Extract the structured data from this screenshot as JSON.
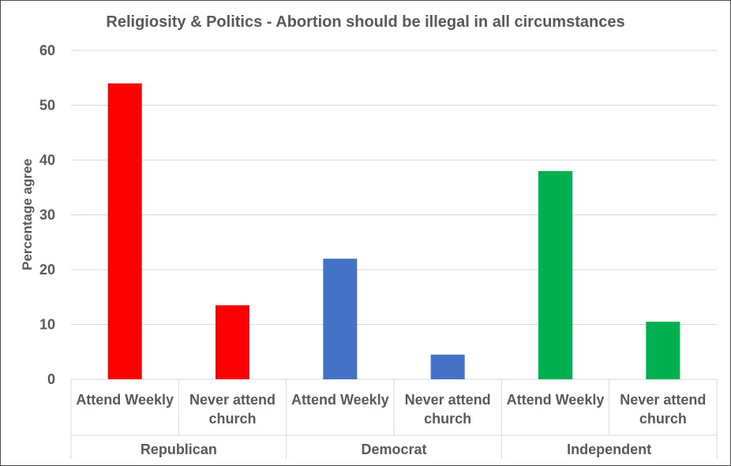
{
  "chart_data": {
    "type": "bar",
    "title": "Religiosity & Politics - Abortion should be illegal in all circumstances",
    "ylabel": "Percentage agree",
    "xlabel": "",
    "ylim": [
      0,
      60
    ],
    "yticks": [
      0,
      10,
      20,
      30,
      40,
      50,
      60
    ],
    "grid": true,
    "groups": [
      {
        "name": "Republican",
        "color": "#ff0000",
        "bars": [
          {
            "label": [
              "Attend Weekly"
            ],
            "value": 54
          },
          {
            "label": [
              "Never attend",
              "church"
            ],
            "value": 13.5
          }
        ]
      },
      {
        "name": "Democrat",
        "color": "#4472c4",
        "bars": [
          {
            "label": [
              "Attend Weekly"
            ],
            "value": 22
          },
          {
            "label": [
              "Never attend",
              "church"
            ],
            "value": 4.5
          }
        ]
      },
      {
        "name": "Independent",
        "color": "#00b050",
        "bars": [
          {
            "label": [
              "Attend Weekly"
            ],
            "value": 38
          },
          {
            "label": [
              "Never attend",
              "church"
            ],
            "value": 10.5
          }
        ]
      }
    ]
  }
}
